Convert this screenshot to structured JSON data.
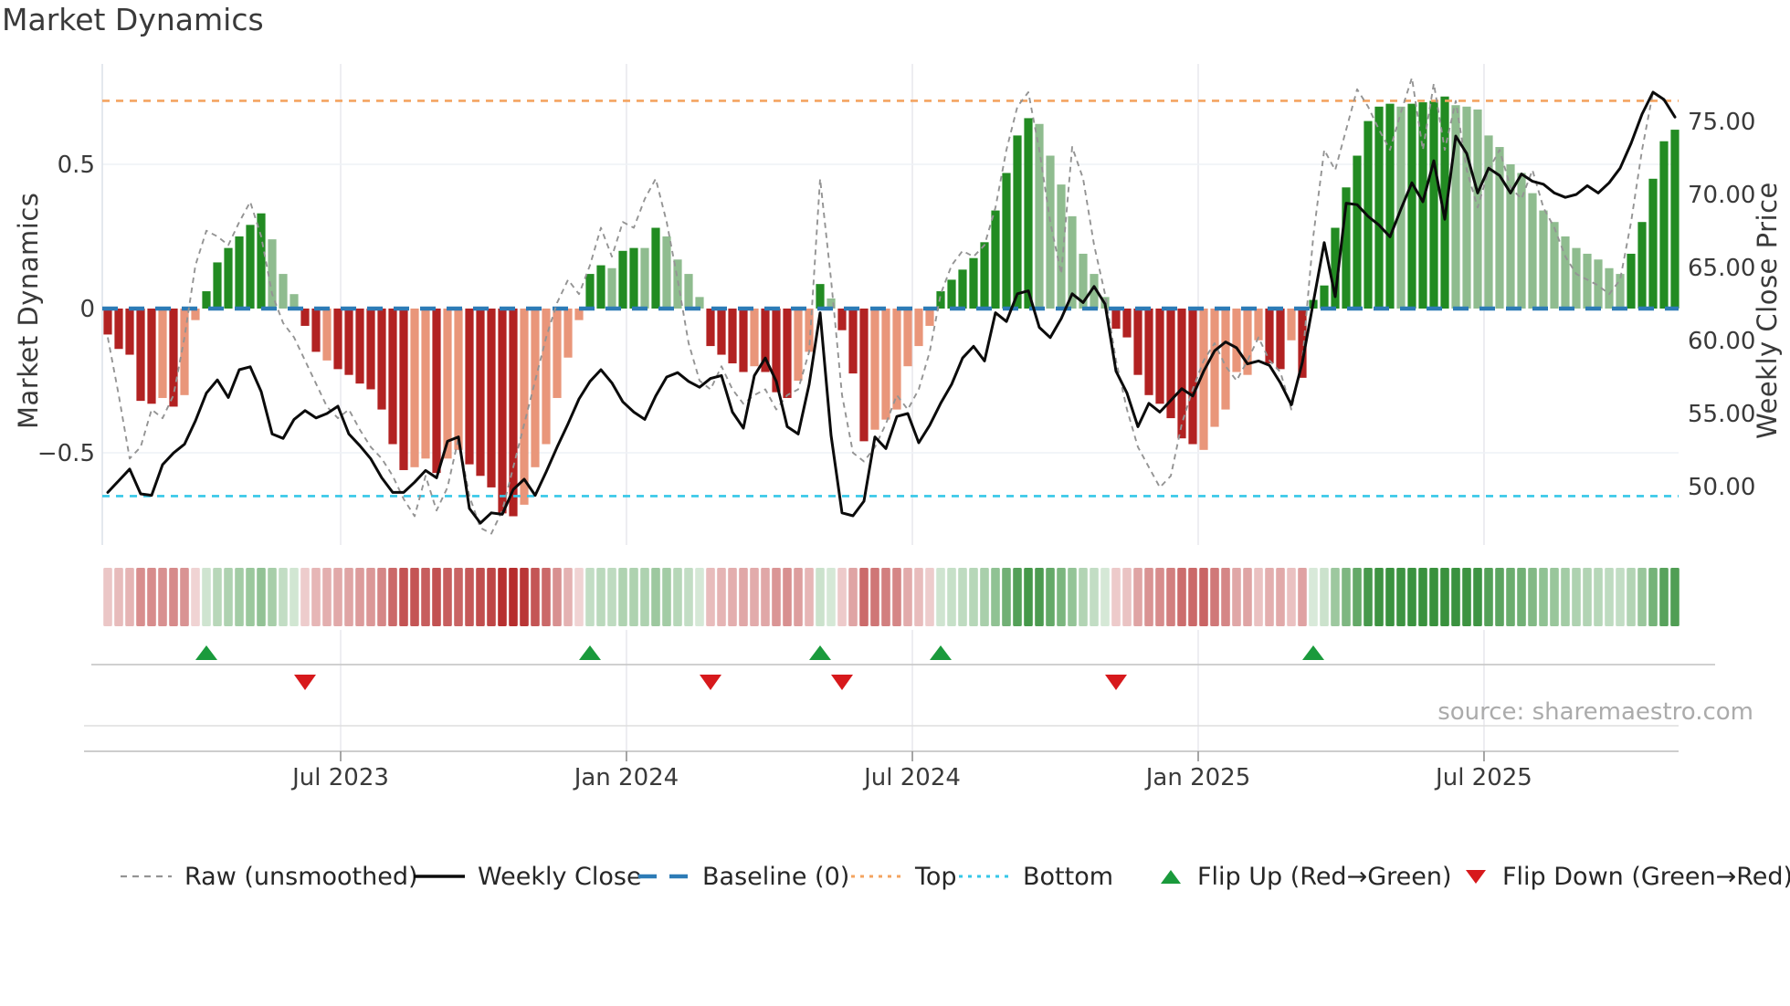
{
  "title": "Market Dynamics",
  "source": "source: sharemaestro.com",
  "colors": {
    "bar_dark_red": "#B22222",
    "bar_light_red": "#E9967A",
    "bar_dark_green": "#228B22",
    "bar_light_green": "#8FBC8F",
    "baseline": "#2D7BB6",
    "top_line": "#F4A460",
    "bottom_line": "#35C7E8",
    "raw_line": "#949494",
    "close_line": "#0b0b0b",
    "flip_up": "#1A9A3C",
    "flip_down": "#D7191C",
    "heat_red": "#B22222",
    "heat_green": "#2E8B33",
    "grid": "#e9e9ee",
    "lane_line": "#c9c9c9",
    "tick_text": "#3a3a3a"
  },
  "legend": {
    "items": [
      {
        "label": "Raw (unsmoothed)",
        "swatch": "dash-gray"
      },
      {
        "label": "Weekly Close",
        "swatch": "solid-black"
      },
      {
        "label": "Baseline (0)",
        "swatch": "dash-blue"
      },
      {
        "label": "Top",
        "swatch": "dot-orange"
      },
      {
        "label": "Bottom",
        "swatch": "dot-cyan"
      },
      {
        "label": "Flip Up (Red→Green)",
        "swatch": "tri-up"
      },
      {
        "label": "Flip Down (Green→Red)",
        "swatch": "tri-down"
      }
    ]
  },
  "chart_data": {
    "type": "bar+line",
    "title": "Market Dynamics",
    "ylabel_left": "Market Dynamics",
    "ylabel_right": "Weekly Close Price",
    "xlabel": "",
    "grid": "light vertical at half-year ticks, light horizontal at ±0.5",
    "legend_position": "bottom",
    "x_tick_labels": [
      "Jul 2023",
      "Jan 2024",
      "Jul 2024",
      "Jan 2025",
      "Jul 2025"
    ],
    "x_tick_week_index": [
      21.25,
      47.33,
      73.42,
      99.5,
      125.58
    ],
    "weeks_span": "weekly bars, ~Feb 2023 to ~Nov 2025",
    "ylim_left": [
      -0.82,
      0.85
    ],
    "ylim_right": [
      46.0,
      78.9
    ],
    "y_ticks_left": {
      "values": [
        0.5,
        0,
        -0.5
      ],
      "labels": [
        "0.5",
        "0",
        "−0.5"
      ]
    },
    "y_ticks_right": {
      "values": [
        75,
        70,
        65,
        60,
        55,
        50
      ],
      "labels": [
        "75.00",
        "70.00",
        "65.00",
        "60.00",
        "55.00",
        "50.00"
      ]
    },
    "baseline_value": 0,
    "top_value": 0.72,
    "bottom_value": -0.65,
    "bars": {
      "name": "Smoothed market dynamics (weekly bars; shade dr=dark red, lr=light red, dg=dark green, lg=light green)",
      "values": [
        -0.09,
        -0.14,
        -0.16,
        -0.32,
        -0.33,
        -0.31,
        -0.34,
        -0.3,
        -0.04,
        0.06,
        0.16,
        0.21,
        0.25,
        0.29,
        0.33,
        0.24,
        0.12,
        0.05,
        -0.06,
        -0.15,
        -0.18,
        -0.21,
        -0.23,
        -0.26,
        -0.28,
        -0.35,
        -0.47,
        -0.56,
        -0.55,
        -0.52,
        -0.57,
        -0.52,
        -0.49,
        -0.54,
        -0.58,
        -0.62,
        -0.71,
        -0.72,
        -0.68,
        -0.55,
        -0.47,
        -0.31,
        -0.17,
        -0.04,
        0.12,
        0.15,
        0.14,
        0.2,
        0.21,
        0.21,
        0.28,
        0.25,
        0.17,
        0.12,
        0.04,
        -0.13,
        -0.16,
        -0.19,
        -0.22,
        -0.2,
        -0.22,
        -0.29,
        -0.31,
        -0.25,
        -0.15,
        0.085,
        0.035,
        -0.075,
        -0.225,
        -0.46,
        -0.42,
        -0.385,
        -0.35,
        -0.2,
        -0.13,
        -0.06,
        0.06,
        0.1,
        0.135,
        0.175,
        0.23,
        0.34,
        0.47,
        0.6,
        0.66,
        0.64,
        0.53,
        0.43,
        0.32,
        0.19,
        0.12,
        0.04,
        -0.07,
        -0.1,
        -0.23,
        -0.3,
        -0.33,
        -0.38,
        -0.45,
        -0.47,
        -0.49,
        -0.41,
        -0.35,
        -0.22,
        -0.23,
        -0.11,
        -0.19,
        -0.21,
        -0.11,
        -0.24,
        0.03,
        0.08,
        0.28,
        0.42,
        0.53,
        0.65,
        0.7,
        0.71,
        0.7,
        0.71,
        0.715,
        0.72,
        0.735,
        0.705,
        0.7,
        0.69,
        0.6,
        0.56,
        0.5,
        0.47,
        0.4,
        0.34,
        0.3,
        0.25,
        0.21,
        0.19,
        0.17,
        0.14,
        0.12,
        0.19,
        0.3,
        0.45,
        0.58,
        0.62
      ],
      "shades": [
        "dr",
        "dr",
        "dr",
        "dr",
        "dr",
        "lr",
        "dr",
        "lr",
        "lr",
        "dg",
        "dg",
        "dg",
        "dg",
        "dg",
        "dg",
        "lg",
        "lg",
        "lg",
        "dr",
        "dr",
        "lr",
        "dr",
        "dr",
        "dr",
        "dr",
        "dr",
        "dr",
        "dr",
        "lr",
        "lr",
        "dr",
        "lr",
        "lr",
        "dr",
        "dr",
        "dr",
        "dr",
        "dr",
        "lr",
        "lr",
        "lr",
        "lr",
        "lr",
        "lr",
        "dg",
        "dg",
        "lg",
        "dg",
        "dg",
        "lg",
        "dg",
        "lg",
        "lg",
        "lg",
        "lg",
        "dr",
        "dr",
        "dr",
        "dr",
        "lr",
        "dr",
        "dr",
        "dr",
        "lr",
        "lr",
        "dg",
        "lg",
        "dr",
        "dr",
        "dr",
        "lr",
        "lr",
        "lr",
        "lr",
        "lr",
        "lr",
        "dg",
        "dg",
        "dg",
        "dg",
        "dg",
        "dg",
        "dg",
        "dg",
        "dg",
        "lg",
        "lg",
        "lg",
        "lg",
        "lg",
        "lg",
        "lg",
        "dr",
        "dr",
        "dr",
        "dr",
        "dr",
        "dr",
        "dr",
        "dr",
        "lr",
        "lr",
        "lr",
        "lr",
        "lr",
        "lr",
        "dr",
        "dr",
        "lr",
        "dr",
        "dg",
        "dg",
        "dg",
        "dg",
        "dg",
        "dg",
        "dg",
        "dg",
        "lg",
        "dg",
        "dg",
        "dg",
        "dg",
        "lg",
        "lg",
        "lg",
        "lg",
        "lg",
        "lg",
        "lg",
        "lg",
        "lg",
        "lg",
        "lg",
        "lg",
        "lg",
        "lg",
        "lg",
        "lg",
        "dg",
        "dg",
        "dg",
        "dg",
        "dg"
      ]
    },
    "series": [
      {
        "name": "Raw (unsmoothed)",
        "axis": "left",
        "values": [
          -0.1,
          -0.3,
          -0.52,
          -0.48,
          -0.35,
          -0.38,
          -0.3,
          -0.1,
          0.15,
          0.27,
          0.25,
          0.22,
          0.3,
          0.37,
          0.25,
          0.05,
          -0.05,
          -0.1,
          -0.18,
          -0.26,
          -0.34,
          -0.38,
          -0.35,
          -0.42,
          -0.48,
          -0.52,
          -0.58,
          -0.66,
          -0.72,
          -0.58,
          -0.7,
          -0.62,
          -0.45,
          -0.65,
          -0.76,
          -0.78,
          -0.7,
          -0.55,
          -0.4,
          -0.25,
          -0.1,
          0.02,
          0.1,
          0.05,
          0.15,
          0.28,
          0.18,
          0.3,
          0.28,
          0.38,
          0.45,
          0.3,
          0.1,
          -0.12,
          -0.25,
          -0.28,
          -0.2,
          -0.28,
          -0.33,
          -0.3,
          -0.28,
          -0.35,
          -0.3,
          -0.28,
          -0.15,
          0.45,
          0.1,
          -0.3,
          -0.5,
          -0.53,
          -0.48,
          -0.4,
          -0.3,
          -0.35,
          -0.28,
          -0.15,
          0.05,
          0.15,
          0.2,
          0.18,
          0.22,
          0.35,
          0.55,
          0.7,
          0.75,
          0.55,
          0.3,
          0.12,
          0.56,
          0.45,
          0.22,
          0.05,
          -0.18,
          -0.35,
          -0.48,
          -0.55,
          -0.62,
          -0.58,
          -0.4,
          -0.28,
          -0.18,
          -0.12,
          -0.2,
          -0.25,
          -0.18,
          -0.1,
          -0.18,
          -0.22,
          -0.35,
          -0.18,
          0.25,
          0.55,
          0.48,
          0.62,
          0.76,
          0.7,
          0.62,
          0.55,
          0.68,
          0.8,
          0.55,
          0.78,
          0.55,
          0.72,
          0.48,
          0.35,
          0.48,
          0.55,
          0.42,
          0.38,
          0.48,
          0.35,
          0.28,
          0.18,
          0.12,
          0.1,
          0.08,
          0.05,
          0.1,
          0.3,
          0.55,
          0.75,
          0.72,
          0.67
        ]
      },
      {
        "name": "Weekly Close",
        "axis": "right",
        "values": [
          49.6,
          50.4,
          51.2,
          49.5,
          49.4,
          51.5,
          52.3,
          52.9,
          54.5,
          56.4,
          57.3,
          56.1,
          58.0,
          58.2,
          56.5,
          53.6,
          53.3,
          54.6,
          55.2,
          54.7,
          55.0,
          55.5,
          53.6,
          52.8,
          51.9,
          50.6,
          49.6,
          49.6,
          50.3,
          51.1,
          50.6,
          53.1,
          53.4,
          48.5,
          47.5,
          48.2,
          48.1,
          49.8,
          50.5,
          49.4,
          51.0,
          52.7,
          54.3,
          56.0,
          57.2,
          58.0,
          57.1,
          55.8,
          55.1,
          54.6,
          56.2,
          57.5,
          57.8,
          57.2,
          56.8,
          57.4,
          57.6,
          55.1,
          54.0,
          57.6,
          58.8,
          57.2,
          54.1,
          53.6,
          57.0,
          61.9,
          53.5,
          48.2,
          48.0,
          49.0,
          53.4,
          52.6,
          54.8,
          55.0,
          53.0,
          54.2,
          55.7,
          57.0,
          58.8,
          59.6,
          58.6,
          61.9,
          61.3,
          63.2,
          63.4,
          60.9,
          60.2,
          61.5,
          63.2,
          62.6,
          63.7,
          62.5,
          57.9,
          56.4,
          54.1,
          55.7,
          55.1,
          55.9,
          56.7,
          56.2,
          57.9,
          59.3,
          59.9,
          59.5,
          58.4,
          58.6,
          58.3,
          57.1,
          55.6,
          58.5,
          62.6,
          66.7,
          63.0,
          69.4,
          69.3,
          68.5,
          67.9,
          67.1,
          69.0,
          70.8,
          69.5,
          72.3,
          68.3,
          74.0,
          72.8,
          70.1,
          71.8,
          71.3,
          70.1,
          71.4,
          70.9,
          70.7,
          70.1,
          69.8,
          70.0,
          70.6,
          70.1,
          70.8,
          71.8,
          73.5,
          75.5,
          77.0,
          76.5,
          75.3
        ]
      }
    ],
    "flip_up_weeks": [
      9,
      44,
      65,
      76,
      110
    ],
    "flip_down_weeks": [
      18,
      55,
      67,
      92
    ],
    "heatmap": "strip below plot mirrors bar sign/intensity per week"
  }
}
